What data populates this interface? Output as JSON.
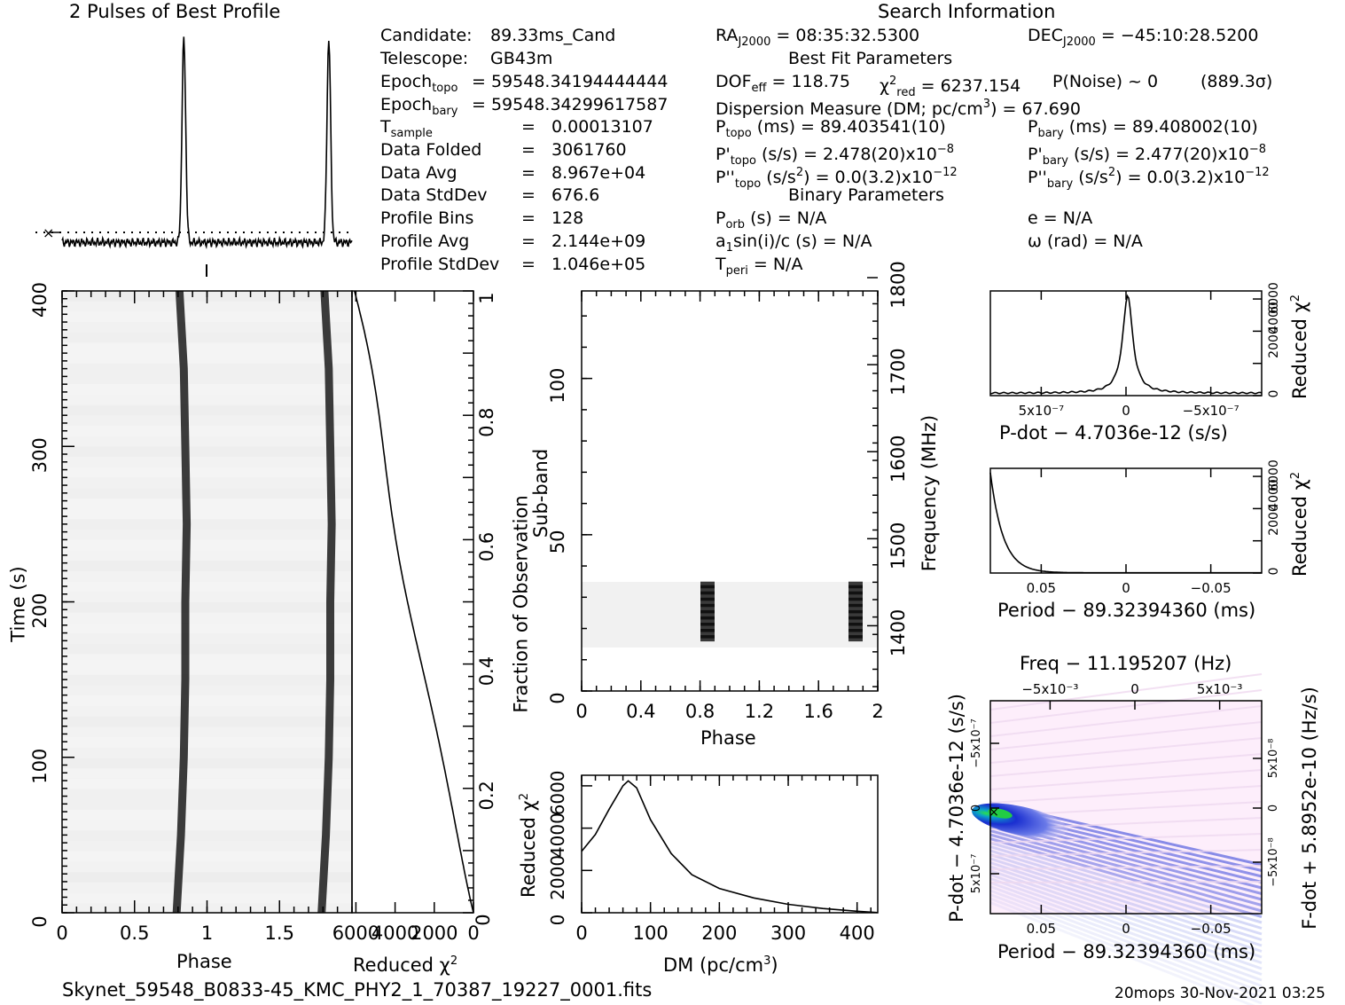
{
  "title_profile": "2 Pulses of Best Profile",
  "title_search": "Search Information",
  "footer_file": "Skynet_59548_B0833-45_KMC_PHY2_1_70387_19227_0001.fits",
  "footer_stamp": "20mops 30-Nov-2021 03:25",
  "info_left": [
    {
      "label": "Candidate:",
      "value": "89.33ms_Cand"
    },
    {
      "label": "Telescope:",
      "value": "GB43m"
    },
    {
      "label": "Epoch",
      "sub": "topo",
      "value": "= 59548.34194444444"
    },
    {
      "label": "Epoch",
      "sub": "bary",
      "value": "= 59548.34299617587"
    },
    {
      "label": "T",
      "sub": "sample",
      "eq": "=",
      "value": "0.00013107"
    },
    {
      "label": "Data Folded",
      "eq": "=",
      "value": "3061760"
    },
    {
      "label": "Data Avg",
      "eq": "=",
      "value": "8.967e+04"
    },
    {
      "label": "Data StdDev",
      "eq": "=",
      "value": "676.6"
    },
    {
      "label": "Profile Bins",
      "eq": "=",
      "value": "128"
    },
    {
      "label": "Profile Avg",
      "eq": "=",
      "value": "2.144e+09"
    },
    {
      "label": "Profile StdDev",
      "eq": "=",
      "value": "1.046e+05"
    }
  ],
  "info_mid": {
    "ra": "= 08:35:32.5300",
    "best_fit_heading": "Best Fit Parameters",
    "dof": "= 118.75",
    "chi2_red": "= 6237.154",
    "pnoise": "P(Noise) ~ 0",
    "sigma": "(889.3σ)",
    "dm_label": "Dispersion Measure (DM; pc/cm",
    "dm_value": ") = 67.690",
    "ptopo": "(ms) =  89.403541(10)",
    "pdtopo": "(s/s) =  2.478(20)x10",
    "pdtopo_exp": "−8",
    "pddtopo_a": "(s/s",
    "pddtopo_b": ") = 0.0(3.2)x10",
    "pddtopo_exp": "−12",
    "binary_heading": "Binary Parameters",
    "porb": "(s) = N/A",
    "a1sini": "sin(i)/c (s) = N/A",
    "tperi": "= N/A"
  },
  "info_right": {
    "dec": "= −45:10:28.5200",
    "pbary": "(ms) =  89.408002(10)",
    "pdbary": "(s/s) =  2.477(20)x10",
    "pdbary_exp": "−8",
    "pddbary_b": ") = 0.0(3.2)x10",
    "pddbary_exp": "−12",
    "ecc": "e = N/A",
    "omega": "ω (rad) = N/A"
  },
  "labels": {
    "time_axis": "Time (s)",
    "phase": "Phase",
    "reduced_chi2": "Reduced χ",
    "fraction_obs": "Fraction of Observation",
    "subband": "Sub-band",
    "frequency": "Frequency (MHz)",
    "dm_axis": "DM (pc/cm",
    "dm_axis_end": ")",
    "pdot_title": "P-dot − 4.7036e-12 (s/s)",
    "period_title": "Period − 89.32394360 (ms)",
    "freq_title": "Freq − 11.195207 (Hz)",
    "pdot_side": "P-dot − 4.7036e-12 (s/s)",
    "fdot_side": "F-dot + 5.8952e-10 (Hz/s)"
  },
  "colors": {
    "ink": "#000000",
    "pp_bg": "#fdeefb",
    "pp_peak": "#22cc44",
    "pp_mid": "#1a2fd0"
  },
  "chart_data": [
    {
      "type": "line",
      "name": "profile",
      "title": "2 Pulses of Best Profile",
      "x": [
        0,
        0.2,
        0.4,
        0.6,
        0.75,
        0.82,
        0.86,
        0.9,
        1.0,
        1.2,
        1.4,
        1.6,
        1.75,
        1.82,
        1.86,
        1.9,
        2.0
      ],
      "y": [
        0.02,
        0.03,
        0.01,
        0.03,
        0.05,
        0.99,
        0.9,
        0.05,
        0.02,
        0.03,
        0.01,
        0.03,
        0.05,
        0.99,
        0.9,
        0.05,
        0.02
      ],
      "xlim": [
        0,
        2
      ],
      "ylim": [
        0,
        1
      ]
    },
    {
      "type": "heatmap",
      "name": "time-phase",
      "xlabel": "Phase",
      "ylabel": "Time (s)",
      "xlim": [
        0,
        2
      ],
      "ylim": [
        0,
        400
      ],
      "xticks": [
        "0",
        "0.5",
        "1",
        "1.5"
      ],
      "yticks": [
        "0",
        "100",
        "200",
        "300",
        "400"
      ],
      "pulse_track": {
        "time": [
          0,
          50,
          100,
          150,
          200,
          250,
          300,
          350,
          400
        ],
        "phase": [
          0.79,
          0.82,
          0.84,
          0.85,
          0.85,
          0.86,
          0.85,
          0.84,
          0.81
        ]
      }
    },
    {
      "type": "line",
      "name": "chi2-vs-fraction",
      "xlabel": "Reduced χ²",
      "ylabel": "Fraction of Observation",
      "xticks": [
        "6000",
        "4000",
        "2000",
        "0"
      ],
      "yticks": [
        "0.2",
        "0.4",
        "0.6",
        "0.8",
        "1"
      ],
      "x": [
        6000,
        5600,
        4800,
        3800,
        2800,
        1900,
        1100,
        400,
        0
      ],
      "y": [
        1.0,
        0.97,
        0.85,
        0.72,
        0.58,
        0.42,
        0.26,
        0.1,
        0.0
      ],
      "xlim": [
        0,
        6200
      ],
      "ylim": [
        0,
        1
      ]
    },
    {
      "type": "heatmap",
      "name": "subband-phase",
      "xlabel": "Phase",
      "ylabel": "Sub-band",
      "y2label": "Frequency (MHz)",
      "xticks": [
        "0",
        "0.4",
        "0.8",
        "1.2",
        "1.6",
        "2"
      ],
      "yticks": [
        "0",
        "50",
        "100"
      ],
      "y2ticks": [
        "1400",
        "1500",
        "1600",
        "1700",
        "1800"
      ],
      "xlim": [
        0,
        2
      ],
      "ylim": [
        0,
        128
      ],
      "signal_subbands": [
        16,
        35
      ],
      "pulse_phase": [
        0.85,
        1.85
      ]
    },
    {
      "type": "line",
      "name": "chi2-vs-dm",
      "xlabel": "DM (pc/cm³)",
      "ylabel": "Reduced χ²",
      "xticks": [
        "0",
        "100",
        "200",
        "300",
        "400"
      ],
      "yticks": [
        "0",
        "2000",
        "4000",
        "6000"
      ],
      "x": [
        0,
        20,
        40,
        60,
        67.69,
        80,
        100,
        130,
        160,
        200,
        250,
        300,
        350,
        400,
        430
      ],
      "y": [
        2900,
        3700,
        4900,
        6000,
        6237,
        5900,
        4400,
        2800,
        1800,
        1150,
        700,
        400,
        200,
        70,
        10
      ],
      "xlim": [
        0,
        430
      ],
      "ylim": [
        0,
        6500
      ]
    },
    {
      "type": "line",
      "name": "chi2-vs-pdot",
      "xlabel": "P-dot − 4.7036e-12 (s/s)",
      "ylabel": "Reduced χ²",
      "xticks": [
        "5x10⁻⁷",
        "0",
        "−5x10⁻⁷"
      ],
      "yticks": [
        "0",
        "2000",
        "4000",
        "6000"
      ],
      "x": [
        -8,
        -6,
        -4,
        -2,
        -1,
        -0.5,
        -0.2,
        0,
        0.2,
        0.6,
        1,
        2,
        4,
        8
      ],
      "y": [
        150,
        200,
        260,
        500,
        1200,
        2500,
        4500,
        6200,
        4500,
        1200,
        500,
        250,
        180,
        150
      ],
      "xlim": [
        -8,
        8
      ],
      "ylim": [
        0,
        6500
      ]
    },
    {
      "type": "line",
      "name": "chi2-vs-period",
      "xlabel": "Period − 89.32394360 (ms)",
      "ylabel": "Reduced χ²",
      "xticks": [
        "0.05",
        "0",
        "−0.05"
      ],
      "yticks": [
        "0",
        "2000",
        "4000",
        "6000"
      ],
      "x": [
        0.08,
        0.075,
        0.07,
        0.065,
        0.06,
        0.05,
        0.04,
        0.02,
        0,
        -0.08
      ],
      "y": [
        6237,
        4200,
        2600,
        1400,
        700,
        200,
        80,
        30,
        20,
        15
      ],
      "xlim": [
        -0.08,
        0.08
      ],
      "ylim": [
        0,
        6500
      ]
    },
    {
      "type": "heatmap",
      "name": "p-pdot-plane",
      "title": "Freq − 11.195207 (Hz)",
      "xlabel": "Period − 89.32394360 (ms)",
      "ylabel": "P-dot − 4.7036e-12 (s/s)",
      "x2label": "Freq − 11.195207 (Hz)",
      "y2label": "F-dot + 5.8952e-10 (Hz/s)",
      "xticks": [
        "0.05",
        "0",
        "−0.05"
      ],
      "x2ticks": [
        "−5x10⁻³",
        "0",
        "5x10⁻³"
      ],
      "yticks": [
        "−5x10⁻⁷",
        "0",
        "5x10⁻⁷"
      ],
      "y2ticks": [
        "5x10⁻⁸",
        "0",
        "−5x10⁻⁸"
      ]
    }
  ]
}
